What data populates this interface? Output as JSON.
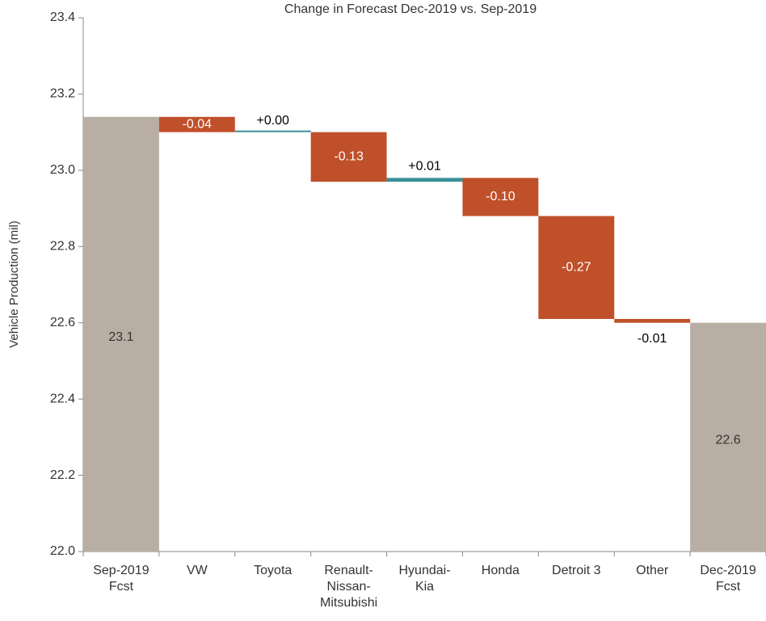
{
  "chart_data": {
    "type": "waterfall",
    "title": "Change in Forecast Dec-2019 vs. Sep-2019",
    "y_label": "Vehicle Production (mil)",
    "categories": [
      "Sep-2019\nFcst",
      "VW",
      "Toyota",
      "Renault-\nNissan-\nMitsubishi",
      "Hyundai-\nKia",
      "Honda",
      "Detroit 3",
      "Other",
      "Dec-2019\nFcst"
    ],
    "values": [
      23.14,
      -0.04,
      0.0,
      -0.13,
      0.01,
      -0.1,
      -0.27,
      -0.01,
      22.6
    ],
    "value_labels": [
      "23.1",
      "-0.04",
      "+0.00",
      "-0.13",
      "+0.01",
      "-0.10",
      "-0.27",
      "-0.01",
      "22.6"
    ],
    "totals": [
      true,
      false,
      false,
      false,
      false,
      false,
      false,
      false,
      true
    ],
    "colors": {
      "total": "#b8aea3",
      "decrease": "#c0502a",
      "increase": "#3a8f9a"
    },
    "ylim": [
      22.0,
      23.4
    ],
    "yticks": [
      {
        "value": 22.0,
        "label": "22.0"
      },
      {
        "value": 22.2,
        "label": "22.2"
      },
      {
        "value": 22.4,
        "label": "22.4"
      },
      {
        "value": 22.6,
        "label": "22.6"
      },
      {
        "value": 22.8,
        "label": "22.8"
      },
      {
        "value": 23.0,
        "label": "23.0"
      },
      {
        "value": 23.2,
        "label": "23.2"
      },
      {
        "value": 23.4,
        "label": "23.4"
      }
    ]
  }
}
